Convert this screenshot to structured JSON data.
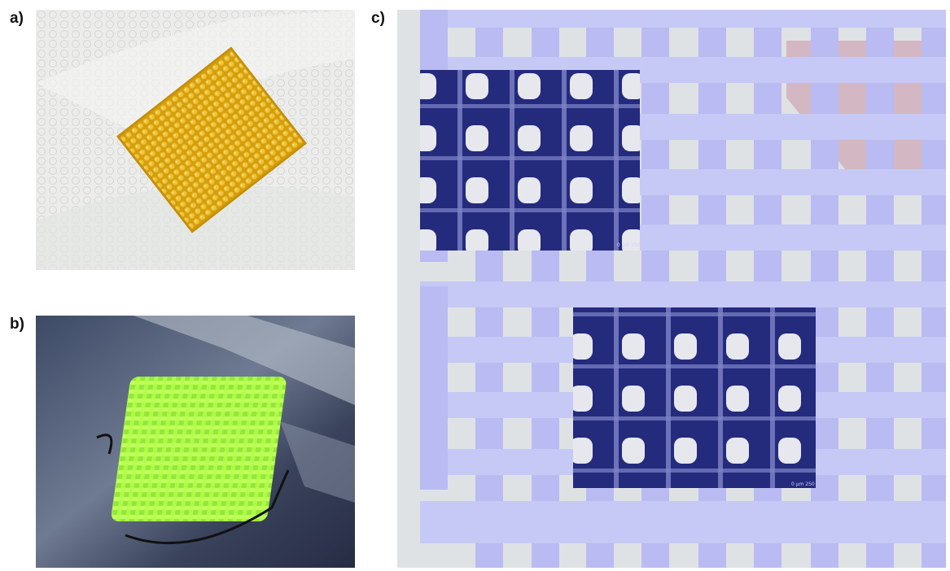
{
  "figure": {
    "panels": [
      {
        "label": "a)"
      },
      {
        "label": "b)"
      },
      {
        "label": "c)"
      }
    ],
    "scale_bar_text": "0 µm 250",
    "colors": {
      "sample_a_yellow": "#d8a310",
      "sample_b_green": "#a9ff3a",
      "toolpath_lavender": "#b9bbf2",
      "micrograph_navy": "#23237a",
      "canvas_gray": "#dfe2e4"
    }
  }
}
